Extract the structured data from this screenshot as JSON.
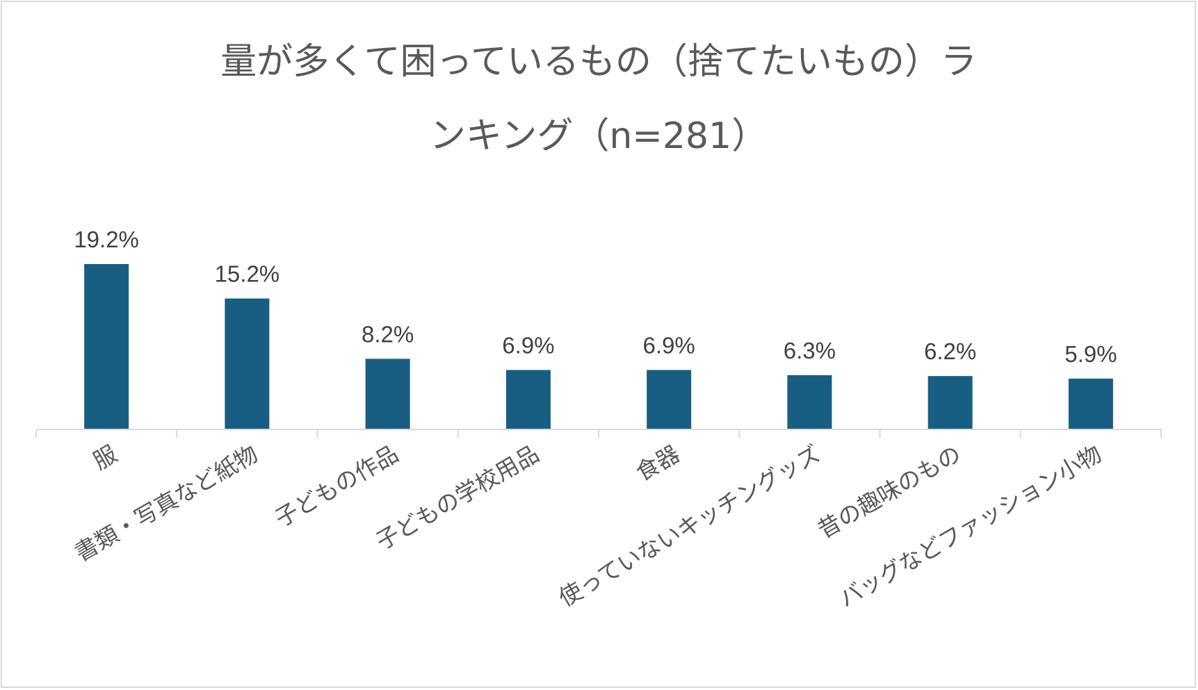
{
  "chart_data": {
    "type": "bar",
    "title_line1": "量が多くて困っているもの（捨てたいもの）ラ",
    "title_line2": "ンキング（n=281）",
    "categories": [
      "服",
      "書類・写真など紙物",
      "子どもの作品",
      "子どもの学校用品",
      "食器",
      "使っていないキッチングッズ",
      "昔の趣味のもの",
      "バッグなどファッション小物"
    ],
    "values": [
      19.2,
      15.2,
      8.2,
      6.9,
      6.9,
      6.3,
      6.2,
      5.9
    ],
    "value_labels": [
      "19.2%",
      "15.2%",
      "8.2%",
      "6.9%",
      "6.9%",
      "6.3%",
      "6.2%",
      "5.9%"
    ],
    "ylim": [
      0,
      19.2
    ],
    "grid": false,
    "legend": "none",
    "bar_color": "#175e82"
  }
}
